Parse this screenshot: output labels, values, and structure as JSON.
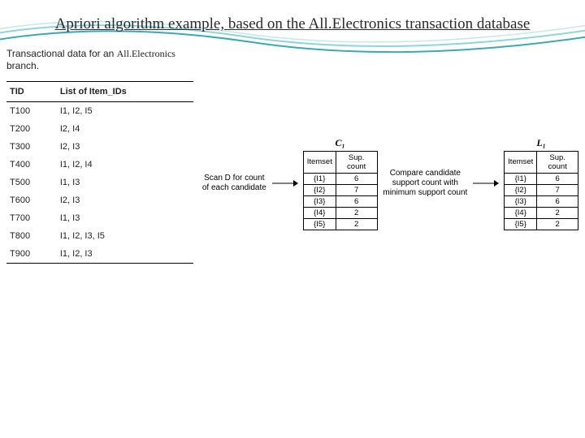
{
  "title": "Apriori algorithm example, based on the All.Electronics transaction database",
  "caption_prefix": "Transactional data for an ",
  "caption_brand": "All.Electronics",
  "caption_suffix": " branch.",
  "tx_table": {
    "headers": [
      "TID",
      "List of Item_IDs"
    ],
    "rows": [
      [
        "T100",
        "I1, I2, I5"
      ],
      [
        "T200",
        "I2, I4"
      ],
      [
        "T300",
        "I2, I3"
      ],
      [
        "T400",
        "I1, I2, I4"
      ],
      [
        "T500",
        "I1, I3"
      ],
      [
        "T600",
        "I2, I3"
      ],
      [
        "T700",
        "I1, I3"
      ],
      [
        "T800",
        "I1, I2, I3, I5"
      ],
      [
        "T900",
        "I1, I2, I3"
      ]
    ]
  },
  "step1_text": "Scan D for count of each candidate",
  "step2_text": "Compare candidate support count with minimum support count",
  "c1": {
    "label": "C₁",
    "headers": [
      "Itemset",
      "Sup. count"
    ],
    "rows": [
      [
        "{I1}",
        "6"
      ],
      [
        "{I2}",
        "7"
      ],
      [
        "{I3}",
        "6"
      ],
      [
        "{I4}",
        "2"
      ],
      [
        "{I5}",
        "2"
      ]
    ]
  },
  "l1": {
    "label": "L₁",
    "headers": [
      "Itemset",
      "Sup. count"
    ],
    "rows": [
      [
        "{I1}",
        "6"
      ],
      [
        "{I2}",
        "7"
      ],
      [
        "{I3}",
        "6"
      ],
      [
        "{I4}",
        "2"
      ],
      [
        "{I5}",
        "2"
      ]
    ]
  },
  "colors": {
    "wave1": "#8fd4d9",
    "wave2": "#3aa9b5"
  }
}
